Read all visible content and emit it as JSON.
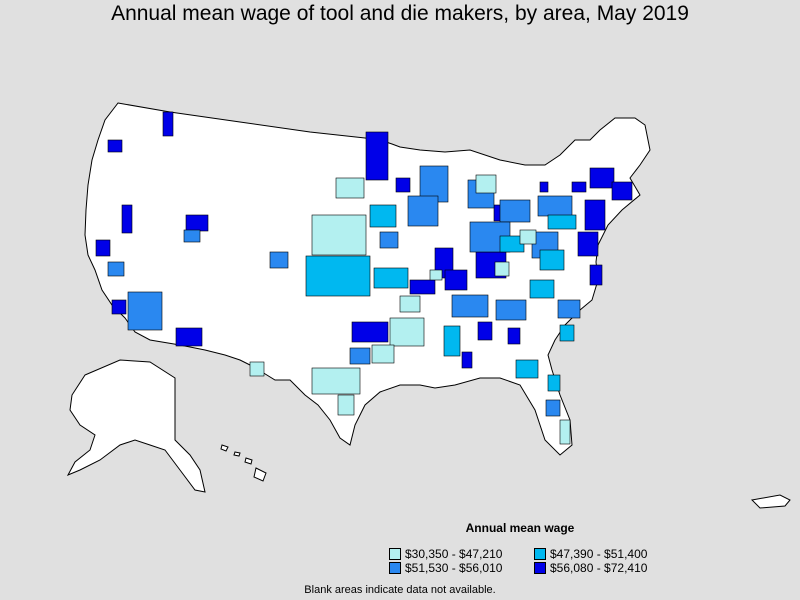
{
  "title": "Annual mean wage of tool and die makers, by area, May 2019",
  "legend": {
    "title": "Annual mean wage",
    "items": [
      {
        "label": "$30,350 - $47,210",
        "color": "#b3f0f0"
      },
      {
        "label": "$47,390 - $51,400",
        "color": "#00b8f0"
      },
      {
        "label": "$51,530 - $56,010",
        "color": "#2a88f0"
      },
      {
        "label": "$56,080 - $72,410",
        "color": "#0000e8"
      }
    ]
  },
  "footnote": "Blank areas indicate data not available.",
  "colors": {
    "background": "#e0e0e0",
    "land": "#ffffff",
    "border": "#000000"
  }
}
